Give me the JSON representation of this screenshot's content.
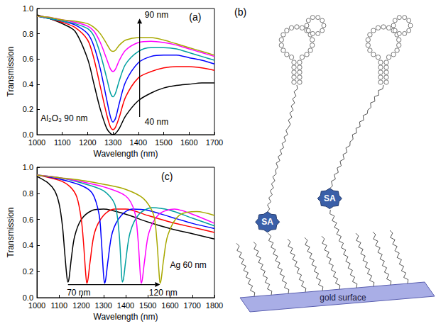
{
  "chart_data": [
    {
      "type": "line",
      "xlabel": "Wavelength (nm)",
      "ylabel": "Transmission",
      "xlim": [
        1000,
        1700
      ],
      "ylim": [
        0,
        1
      ],
      "xticks": [
        1000,
        1100,
        1200,
        1300,
        1400,
        1500,
        1600,
        1700
      ],
      "yticks": [
        {
          "value": 0,
          "label": "0.0"
        },
        {
          "value": 0.2,
          "label": "0.2"
        },
        {
          "value": 0.4,
          "label": "0.4"
        },
        {
          "value": 0.6,
          "label": "0.6"
        },
        {
          "value": 0.8,
          "label": "0.8"
        },
        {
          "value": 1,
          "label": "1.0"
        }
      ],
      "grid": false,
      "x": [
        1000,
        1050,
        1100,
        1150,
        1200,
        1225,
        1250,
        1275,
        1290,
        1300,
        1310,
        1325,
        1350,
        1400,
        1450,
        1500,
        1550,
        1600,
        1650,
        1700
      ],
      "series": [
        {
          "color": "#000000",
          "values": [
            0.95,
            0.92,
            0.88,
            0.82,
            0.6,
            0.4,
            0.2,
            0.05,
            0.01,
            0.0,
            0.01,
            0.05,
            0.15,
            0.27,
            0.33,
            0.37,
            0.39,
            0.4,
            0.41,
            0.41
          ]
        },
        {
          "color": "#ff0000",
          "values": [
            0.94,
            0.92,
            0.89,
            0.85,
            0.75,
            0.6,
            0.38,
            0.16,
            0.06,
            0.04,
            0.06,
            0.14,
            0.3,
            0.45,
            0.5,
            0.53,
            0.54,
            0.54,
            0.53,
            0.51
          ]
        },
        {
          "color": "#0000ff",
          "values": [
            0.94,
            0.92,
            0.9,
            0.87,
            0.8,
            0.7,
            0.52,
            0.28,
            0.14,
            0.1,
            0.13,
            0.25,
            0.42,
            0.57,
            0.62,
            0.63,
            0.63,
            0.61,
            0.59,
            0.56
          ]
        },
        {
          "color": "#00a0a0",
          "values": [
            0.94,
            0.92,
            0.9,
            0.88,
            0.84,
            0.78,
            0.64,
            0.45,
            0.33,
            0.3,
            0.33,
            0.43,
            0.56,
            0.66,
            0.69,
            0.69,
            0.68,
            0.65,
            0.62,
            0.59
          ]
        },
        {
          "color": "#ff00ff",
          "values": [
            0.94,
            0.93,
            0.91,
            0.89,
            0.86,
            0.82,
            0.73,
            0.6,
            0.52,
            0.5,
            0.52,
            0.59,
            0.67,
            0.73,
            0.74,
            0.73,
            0.71,
            0.68,
            0.65,
            0.62
          ]
        },
        {
          "color": "#a8a800",
          "values": [
            0.94,
            0.93,
            0.91,
            0.9,
            0.88,
            0.85,
            0.8,
            0.72,
            0.67,
            0.66,
            0.67,
            0.71,
            0.75,
            0.77,
            0.77,
            0.75,
            0.72,
            0.69,
            0.66,
            0.63
          ]
        }
      ],
      "annotations": [
        {
          "text": "(a)",
          "x": 1600,
          "y": 0.93
        },
        {
          "text": "90 nm",
          "x": 1425,
          "y": 0.95
        },
        {
          "text": "40 nm",
          "x": 1425,
          "y": 0.1
        },
        {
          "text": "Al₂O₃ 90 nm",
          "x": 1015,
          "y": 0.13
        }
      ],
      "arrows": [
        {
          "from": [
            1405,
            0.14
          ],
          "to": [
            1405,
            0.92
          ]
        }
      ]
    },
    {
      "type": "line",
      "xlabel": "Wavelength (nm)",
      "ylabel": "Transmission",
      "xlim": [
        1000,
        1800
      ],
      "ylim": [
        0,
        1
      ],
      "xticks": [
        1000,
        1100,
        1200,
        1300,
        1400,
        1500,
        1600,
        1700,
        1800
      ],
      "yticks": [
        {
          "value": 0,
          "label": "0.0"
        },
        {
          "value": 0.2,
          "label": "0.2"
        },
        {
          "value": 0.4,
          "label": "0.4"
        },
        {
          "value": 0.6,
          "label": "0.6"
        },
        {
          "value": 0.8,
          "label": "0.8"
        },
        {
          "value": 1,
          "label": "1.0"
        }
      ],
      "grid": false,
      "series": [
        {
          "color": "#000000",
          "x": [
            1000,
            1050,
            1080,
            1100,
            1115,
            1125,
            1135,
            1140,
            1145,
            1155,
            1170,
            1200,
            1250,
            1300,
            1400,
            1500,
            1600,
            1700,
            1800
          ],
          "values": [
            0.93,
            0.88,
            0.82,
            0.72,
            0.55,
            0.35,
            0.16,
            0.12,
            0.15,
            0.3,
            0.47,
            0.6,
            0.67,
            0.68,
            0.64,
            0.58,
            0.53,
            0.49,
            0.45
          ]
        },
        {
          "color": "#ff0000",
          "x": [
            1000,
            1100,
            1150,
            1180,
            1200,
            1210,
            1220,
            1225,
            1230,
            1240,
            1260,
            1300,
            1350,
            1400,
            1500,
            1600,
            1700,
            1800
          ],
          "values": [
            0.94,
            0.9,
            0.85,
            0.77,
            0.6,
            0.42,
            0.18,
            0.11,
            0.14,
            0.28,
            0.5,
            0.63,
            0.68,
            0.68,
            0.63,
            0.58,
            0.54,
            0.5
          ]
        },
        {
          "color": "#0000ff",
          "x": [
            1000,
            1100,
            1200,
            1250,
            1280,
            1290,
            1300,
            1305,
            1310,
            1320,
            1340,
            1380,
            1430,
            1500,
            1600,
            1700,
            1800
          ],
          "values": [
            0.94,
            0.91,
            0.86,
            0.8,
            0.64,
            0.45,
            0.18,
            0.11,
            0.14,
            0.28,
            0.5,
            0.63,
            0.68,
            0.67,
            0.62,
            0.57,
            0.53
          ]
        },
        {
          "color": "#00a0a0",
          "x": [
            1000,
            1100,
            1200,
            1300,
            1350,
            1370,
            1380,
            1385,
            1390,
            1400,
            1420,
            1460,
            1520,
            1600,
            1700,
            1800
          ],
          "values": [
            0.94,
            0.92,
            0.88,
            0.82,
            0.72,
            0.5,
            0.22,
            0.12,
            0.14,
            0.28,
            0.5,
            0.64,
            0.69,
            0.67,
            0.61,
            0.55
          ]
        },
        {
          "color": "#ff00ff",
          "x": [
            1000,
            1100,
            1200,
            1300,
            1400,
            1440,
            1455,
            1465,
            1470,
            1475,
            1485,
            1505,
            1550,
            1620,
            1700,
            1800
          ],
          "values": [
            0.94,
            0.92,
            0.89,
            0.85,
            0.78,
            0.66,
            0.46,
            0.2,
            0.11,
            0.14,
            0.28,
            0.5,
            0.64,
            0.68,
            0.64,
            0.57
          ]
        },
        {
          "color": "#a8a800",
          "x": [
            1000,
            1100,
            1200,
            1300,
            1400,
            1480,
            1525,
            1540,
            1550,
            1555,
            1560,
            1570,
            1590,
            1640,
            1720,
            1800
          ],
          "values": [
            0.94,
            0.92,
            0.9,
            0.87,
            0.83,
            0.76,
            0.64,
            0.45,
            0.2,
            0.11,
            0.14,
            0.28,
            0.48,
            0.63,
            0.66,
            0.63
          ]
        }
      ],
      "annotations": [
        {
          "text": "(c)",
          "x": 1560,
          "y": 0.93
        },
        {
          "text": "Ag 60 nm",
          "x": 1600,
          "y": 0.25
        },
        {
          "text": "70 nm",
          "x": 1135,
          "y": 0.04
        },
        {
          "text": "120 nm",
          "x": 1505,
          "y": 0.04
        }
      ],
      "arrows": [
        {
          "from": [
            1140,
            0.1
          ],
          "to": [
            1555,
            0.1
          ]
        }
      ]
    }
  ],
  "diagram": {
    "label": "(b)",
    "blocks": [
      "SA",
      "SA"
    ],
    "surface": "gold surface"
  }
}
